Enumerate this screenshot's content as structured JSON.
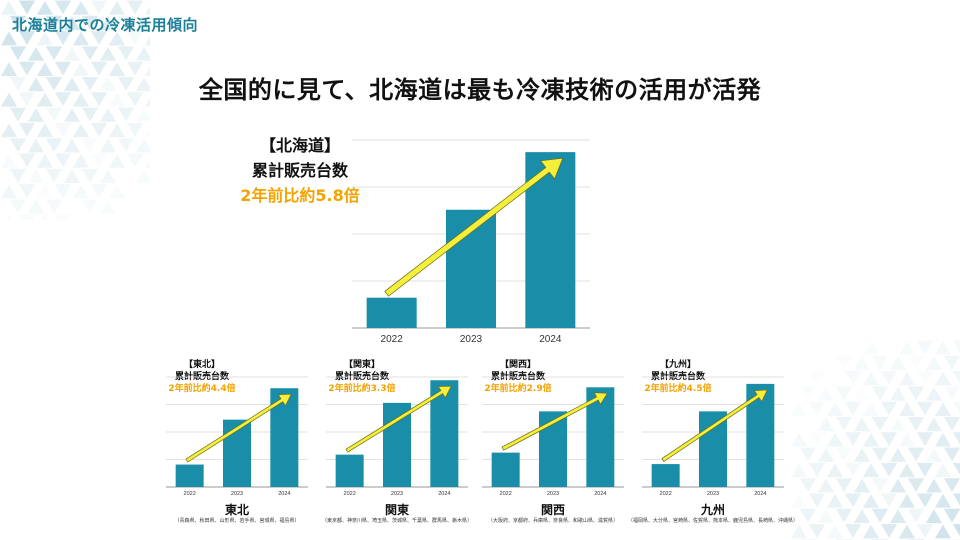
{
  "header": {
    "section_label": "北海道内での冷凍活用傾向",
    "headline": "全国的に見て、北海道は最も冷凍技術の活用が活発"
  },
  "colors": {
    "bar": "#1a8ea8",
    "arrow": "#f5ee3a",
    "ratio_text": "#f4a300",
    "section_label": "#1c7f99",
    "grid": "#d9d9d9"
  },
  "chart_data": [
    {
      "type": "bar",
      "region_label": "【北海道】",
      "metric_label": "累計販売台数",
      "ratio_label": "2年前比約5.8倍",
      "categories": [
        "2022",
        "2023",
        "2024"
      ],
      "values": [
        1.0,
        3.9,
        5.8
      ],
      "ylim": [
        0,
        6.2
      ],
      "grid": true,
      "trend_arrow": true
    },
    {
      "type": "bar",
      "region_label": "【東北】",
      "metric_label": "累計販売台数",
      "ratio_label": "2年前比約4.4倍",
      "categories": [
        "2022",
        "2023",
        "2024"
      ],
      "values": [
        1.0,
        3.0,
        4.4
      ],
      "ylim": [
        0,
        4.9
      ],
      "grid": true,
      "trend_arrow": true,
      "region_name": "東北",
      "prefectures": "（青森県、秋田県、山形県、岩手県、宮城県、福島県）"
    },
    {
      "type": "bar",
      "region_label": "【関東】",
      "metric_label": "累計販売台数",
      "ratio_label": "2年前比約3.3倍",
      "categories": [
        "2022",
        "2023",
        "2024"
      ],
      "values": [
        1.0,
        2.6,
        3.3
      ],
      "ylim": [
        0,
        3.4
      ],
      "grid": true,
      "trend_arrow": true,
      "region_name": "関東",
      "prefectures": "（東京都、神奈川県、埼玉県、茨城県、千葉県、群馬県、栃木県）"
    },
    {
      "type": "bar",
      "region_label": "【関西】",
      "metric_label": "累計販売台数",
      "ratio_label": "2年前比約2.9倍",
      "categories": [
        "2022",
        "2023",
        "2024"
      ],
      "values": [
        1.0,
        2.2,
        2.9
      ],
      "ylim": [
        0,
        3.2
      ],
      "grid": true,
      "trend_arrow": true,
      "region_name": "関西",
      "prefectures": "（大阪府、京都府、兵庫県、奈良県、和歌山県、滋賀県）"
    },
    {
      "type": "bar",
      "region_label": "【九州】",
      "metric_label": "累計販売台数",
      "ratio_label": "2年前比約4.5倍",
      "categories": [
        "2022",
        "2023",
        "2024"
      ],
      "values": [
        1.0,
        3.3,
        4.5
      ],
      "ylim": [
        0,
        4.8
      ],
      "grid": true,
      "trend_arrow": true,
      "region_name": "九州",
      "prefectures": "（福岡県、大分県、宮崎県、佐賀県、熊本県、鹿児島県、長崎県、沖縄県）"
    }
  ]
}
